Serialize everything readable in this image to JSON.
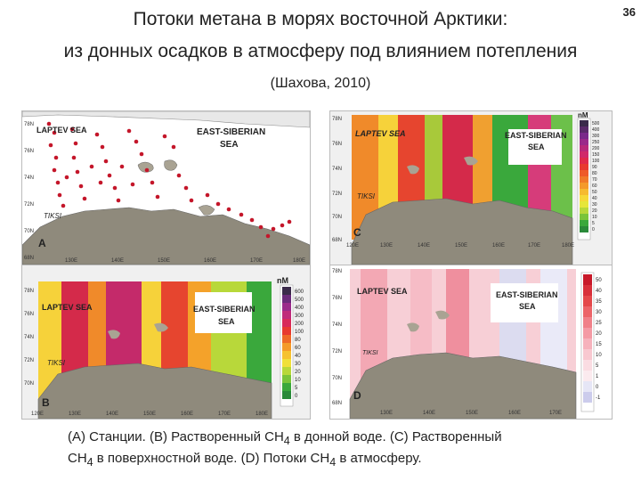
{
  "slide_number": "36",
  "title_line1": "Потоки метана в морях восточной Арктики:",
  "title_line2": "из донных осадков в атмосферу под влиянием потепления",
  "source": "(Шахова, 2010)",
  "caption": {
    "line1_a": "(A) Станции. (B) Растворенный CH",
    "line1_b": " в донной воде. (C) Растворенный",
    "line2_a": "CH",
    "line2_b": " в поверхностной воде. (D) Потоки CH",
    "line2_c": " в атмосферу.",
    "sub": "4"
  },
  "panels": {
    "A": {
      "letter": "A",
      "sea1": "LAPTEV SEA",
      "sea2": "EAST-SIBERIAN",
      "sea2b": "SEA",
      "place": "TIKSI",
      "lat": [
        "78N",
        "76N",
        "74N",
        "72N",
        "70N",
        "68N"
      ],
      "lon": [
        "130E",
        "140E",
        "150E",
        "160E",
        "170E",
        "180E"
      ]
    },
    "B": {
      "letter": "B",
      "sea1": "LAPTEV SEA",
      "sea2": "EAST-SIBERIAN",
      "sea2b": "SEA",
      "place": "TIKSI",
      "unit": "nM",
      "lat": [
        "78N",
        "76N",
        "74N",
        "72N",
        "70N"
      ],
      "lon": [
        "120E",
        "130E",
        "140E",
        "150E",
        "160E",
        "170E",
        "180E"
      ],
      "scale": [
        "600",
        "500",
        "400",
        "300",
        "200",
        "100",
        "80",
        "60",
        "40",
        "30",
        "20",
        "10",
        "5",
        "0"
      ]
    },
    "C": {
      "letter": "C",
      "sea1": "LAPTEV SEA",
      "sea2": "EAST-SIBERIAN",
      "sea2b": "SEA",
      "place": "TIKSI",
      "unit": "nM",
      "lat": [
        "78N",
        "76N",
        "74N",
        "72N",
        "70N",
        "68N"
      ],
      "lon": [
        "120E",
        "130E",
        "140E",
        "150E",
        "160E",
        "170E",
        "180E"
      ],
      "scale": [
        "500",
        "400",
        "300",
        "250",
        "200",
        "150",
        "100",
        "90",
        "80",
        "70",
        "60",
        "50",
        "40",
        "30",
        "20",
        "10",
        "5",
        "0"
      ]
    },
    "D": {
      "letter": "D",
      "sea1": "LAPTEV SEA",
      "sea2": "EAST-SIBERIAN",
      "sea2b": "SEA",
      "place": "TIKSI",
      "lat": [
        "78N",
        "76N",
        "74N",
        "72N",
        "70N",
        "68N"
      ],
      "lon": [
        "130E",
        "140E",
        "150E",
        "160E",
        "170E"
      ],
      "scale": [
        "50",
        "40",
        "35",
        "30",
        "25",
        "20",
        "15",
        "10",
        "5",
        "1",
        "0",
        "-1"
      ]
    }
  }
}
